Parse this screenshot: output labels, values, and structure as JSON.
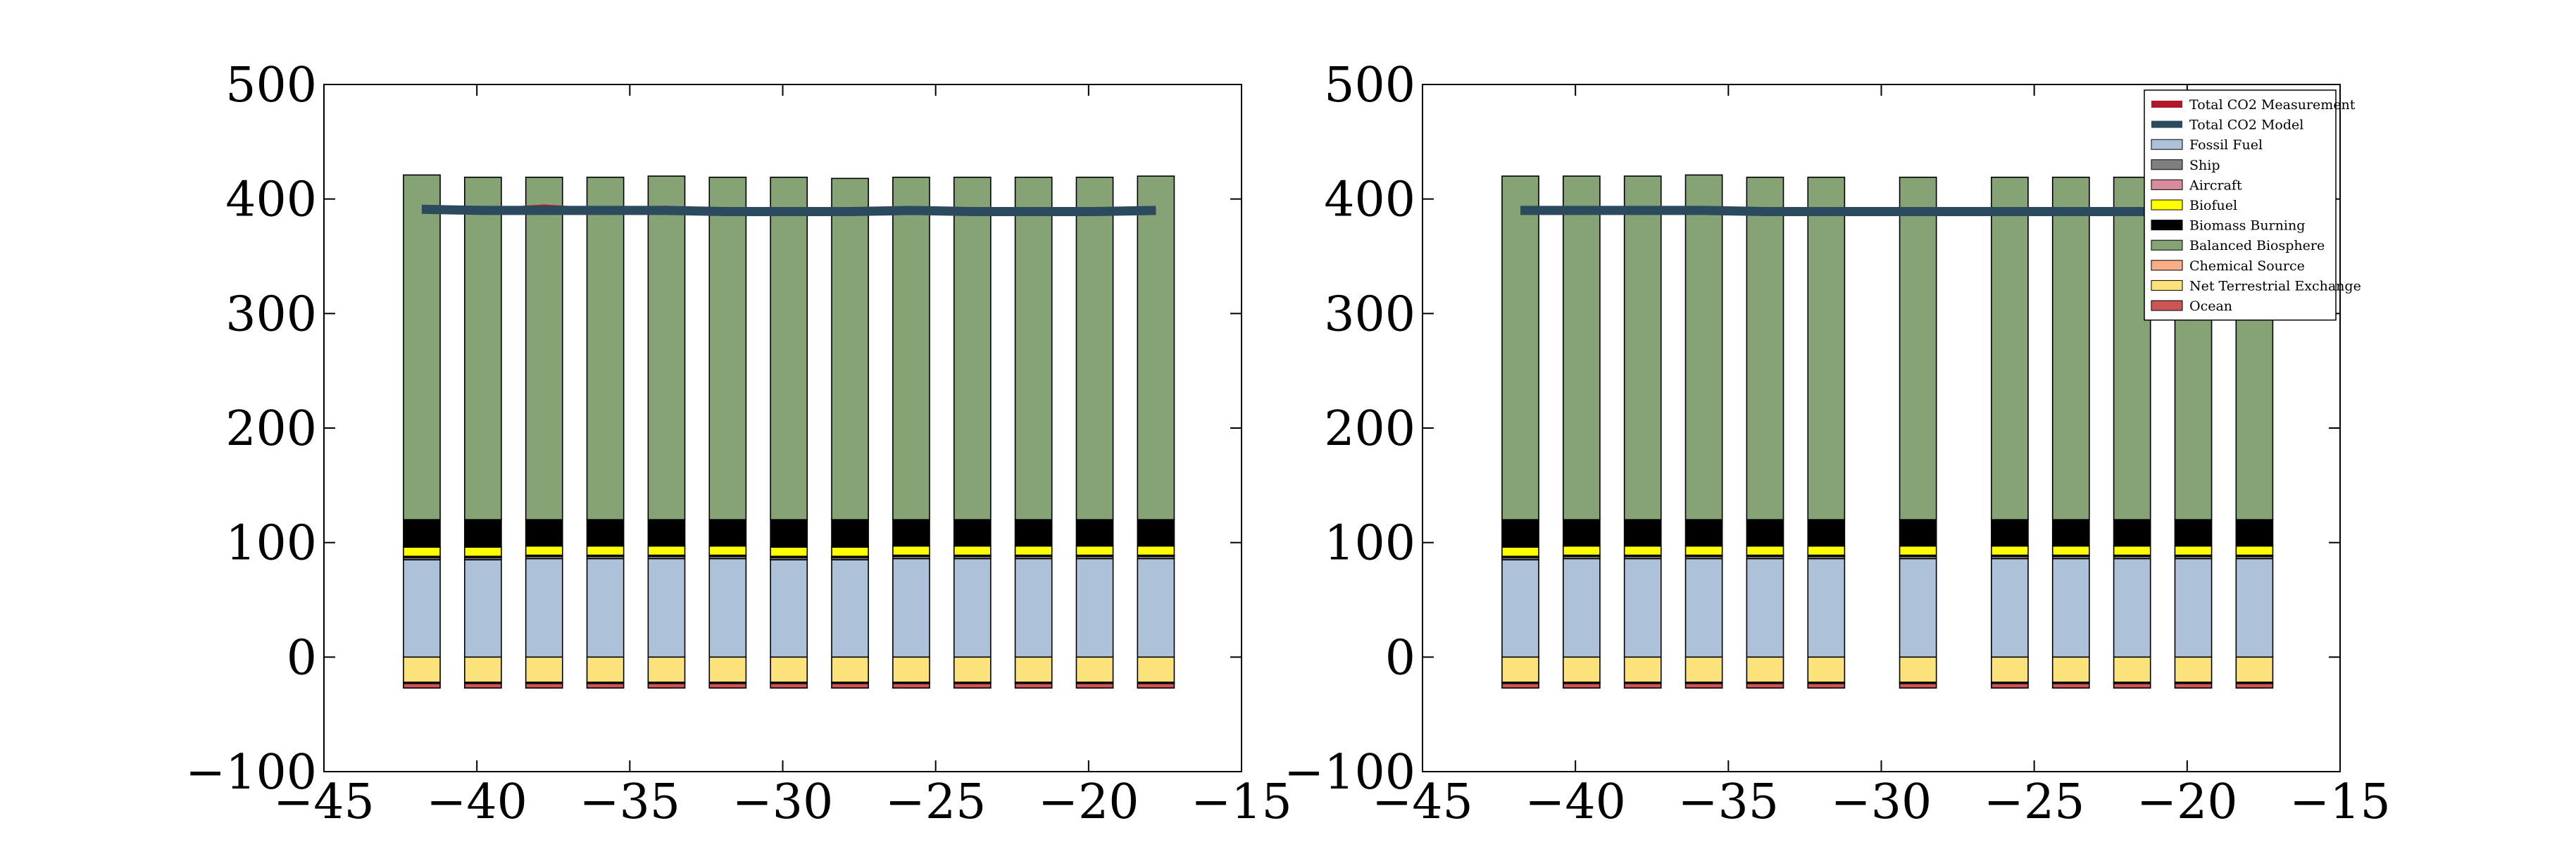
{
  "colors": {
    "Total CO2 Measurement": "#b2182b",
    "Total CO2 Model": "#2c4a5e",
    "Fossil Fuel": "#adc2d9",
    "Ship": "#7f7f7f",
    "Aircraft": "#d98a9c",
    "Biofuel": "#ffff00",
    "Biomass Burning": "#000000",
    "Balanced Biosphere": "#85a374",
    "Chemical Source": "#f7ae86",
    "Net Terrestrial Exchange": "#fbe27a",
    "Ocean": "#cc5555"
  },
  "chart_data": [
    {
      "type": "bar",
      "stacked": true,
      "xlim": [
        -45,
        -15
      ],
      "ylim": [
        -100,
        500
      ],
      "xticks": [
        -45,
        -40,
        -35,
        -30,
        -25,
        -20,
        -15
      ],
      "yticks": [
        -100,
        0,
        100,
        200,
        300,
        400,
        500
      ],
      "xtick_labels": [
        "−45",
        "−40",
        "−35",
        "−30",
        "−25",
        "−20",
        "−15"
      ],
      "ytick_labels": [
        "−100",
        "0",
        "100",
        "200",
        "300",
        "400",
        "500"
      ],
      "x": [
        -41.8,
        -39.8,
        -37.8,
        -35.8,
        -33.8,
        -31.8,
        -29.8,
        -27.8,
        -25.8,
        -23.8,
        -21.8,
        -19.8,
        -17.8
      ],
      "bar_width": 1.2,
      "positive_series": [
        {
          "name": "Fossil Fuel",
          "values": [
            85,
            85,
            86,
            86,
            86,
            86,
            85,
            85,
            86,
            86,
            86,
            86,
            86
          ]
        },
        {
          "name": "Ship",
          "values": [
            2,
            2,
            2,
            2,
            2,
            2,
            2,
            2,
            2,
            2,
            2,
            2,
            2
          ]
        },
        {
          "name": "Aircraft",
          "values": [
            1,
            1,
            1,
            1,
            1,
            1,
            1,
            1,
            1,
            1,
            1,
            1,
            1
          ]
        },
        {
          "name": "Biofuel",
          "values": [
            8,
            8,
            8,
            8,
            8,
            8,
            8,
            8,
            8,
            8,
            8,
            8,
            8
          ]
        },
        {
          "name": "Biomass Burning",
          "values": [
            24,
            24,
            23,
            23,
            23,
            23,
            24,
            24,
            23,
            23,
            23,
            23,
            23
          ]
        },
        {
          "name": "Balanced Biosphere",
          "values": [
            301,
            299,
            299,
            299,
            300,
            299,
            299,
            298,
            299,
            299,
            299,
            299,
            300
          ]
        }
      ],
      "negative_series": [
        {
          "name": "Net Terrestrial Exchange",
          "values": [
            -22,
            -22,
            -22,
            -22,
            -22,
            -22,
            -22,
            -22,
            -22,
            -22,
            -22,
            -22,
            -22
          ]
        },
        {
          "name": "Chemical Source",
          "values": [
            -1,
            -1,
            -1,
            -1,
            -1,
            -1,
            -1,
            -1,
            -1,
            -1,
            -1,
            -1,
            -1
          ]
        },
        {
          "name": "Ocean",
          "values": [
            -4,
            -4,
            -4,
            -4,
            -4,
            -4,
            -4,
            -4,
            -4,
            -4,
            -4,
            -4,
            -4
          ]
        }
      ],
      "lines": [
        {
          "name": "Total CO2 Measurement",
          "x": [
            -41.8,
            -39.8,
            -37.8,
            -35.8,
            -33.8,
            -31.8,
            -29.8,
            -27.8,
            -25.8,
            -23.8,
            -21.8,
            -19.8,
            -17.8
          ],
          "values": [
            391,
            390,
            393,
            390,
            392,
            388,
            388,
            388,
            390,
            388,
            389,
            389,
            389
          ]
        },
        {
          "name": "Total CO2 Model",
          "x": [
            -41.8,
            -39.8,
            -37.8,
            -35.8,
            -33.8,
            -31.8,
            -29.8,
            -27.8,
            -25.8,
            -23.8,
            -21.8,
            -19.8,
            -17.8
          ],
          "values": [
            391,
            390,
            390,
            390,
            390,
            389,
            389,
            389,
            390,
            389,
            389,
            389,
            390
          ]
        }
      ]
    },
    {
      "type": "bar",
      "stacked": true,
      "xlim": [
        -45,
        -15
      ],
      "ylim": [
        -100,
        500
      ],
      "xticks": [
        -45,
        -40,
        -35,
        -30,
        -25,
        -20,
        -15
      ],
      "yticks": [
        -100,
        0,
        100,
        200,
        300,
        400,
        500
      ],
      "xtick_labels": [
        "−45",
        "−40",
        "−35",
        "−30",
        "−25",
        "−20",
        "−15"
      ],
      "ytick_labels": [
        "−100",
        "0",
        "100",
        "200",
        "300",
        "400",
        "500"
      ],
      "x": [
        -41.8,
        -39.8,
        -37.8,
        -35.8,
        -33.8,
        -31.8,
        -28.8,
        -25.8,
        -23.8,
        -21.8,
        -19.8,
        -17.8
      ],
      "bar_width": 1.2,
      "positive_series": [
        {
          "name": "Fossil Fuel",
          "values": [
            85,
            86,
            86,
            86,
            86,
            86,
            86,
            86,
            86,
            86,
            86,
            86
          ]
        },
        {
          "name": "Ship",
          "values": [
            2,
            2,
            2,
            2,
            2,
            2,
            2,
            2,
            2,
            2,
            2,
            2
          ]
        },
        {
          "name": "Aircraft",
          "values": [
            1,
            1,
            1,
            1,
            1,
            1,
            1,
            1,
            1,
            1,
            1,
            1
          ]
        },
        {
          "name": "Biofuel",
          "values": [
            8,
            8,
            8,
            8,
            8,
            8,
            8,
            8,
            8,
            8,
            8,
            8
          ]
        },
        {
          "name": "Biomass Burning",
          "values": [
            24,
            23,
            23,
            23,
            23,
            23,
            23,
            23,
            23,
            23,
            23,
            23
          ]
        },
        {
          "name": "Balanced Biosphere",
          "values": [
            300,
            300,
            300,
            301,
            299,
            299,
            299,
            299,
            299,
            299,
            299,
            299
          ]
        }
      ],
      "negative_series": [
        {
          "name": "Net Terrestrial Exchange",
          "values": [
            -22,
            -22,
            -22,
            -22,
            -22,
            -22,
            -22,
            -22,
            -22,
            -22,
            -22,
            -22
          ]
        },
        {
          "name": "Chemical Source",
          "values": [
            -1,
            -1,
            -1,
            -1,
            -1,
            -1,
            -1,
            -1,
            -1,
            -1,
            -1,
            -1
          ]
        },
        {
          "name": "Ocean",
          "values": [
            -4,
            -4,
            -4,
            -4,
            -4,
            -4,
            -4,
            -4,
            -4,
            -4,
            -4,
            -4
          ]
        }
      ],
      "lines": [
        {
          "name": "Total CO2 Measurement",
          "x": [
            -41.8,
            -39.8,
            -37.8,
            -35.8,
            -33.8,
            -31.8,
            -28.8,
            -25.8,
            -23.8,
            -21.8,
            -19.8,
            -17.8
          ],
          "values": [
            390,
            389,
            390,
            391,
            390,
            389,
            388,
            388,
            388,
            389,
            389,
            389
          ]
        },
        {
          "name": "Total CO2 Model",
          "x": [
            -41.8,
            -39.8,
            -37.8,
            -35.8,
            -33.8,
            -31.8,
            -28.8,
            -25.8,
            -23.8,
            -21.8,
            -19.8,
            -17.8
          ],
          "values": [
            390,
            390,
            390,
            390,
            389,
            389,
            389,
            389,
            389,
            389,
            389,
            389
          ]
        }
      ],
      "legend": {
        "position": "top-right",
        "entries": [
          "Total CO2 Measurement",
          "Total CO2 Model",
          "Fossil Fuel",
          "Ship",
          "Aircraft",
          "Biofuel",
          "Biomass Burning",
          "Balanced Biosphere",
          "Chemical Source",
          "Net Terrestrial Exchange",
          "Ocean"
        ]
      }
    }
  ]
}
